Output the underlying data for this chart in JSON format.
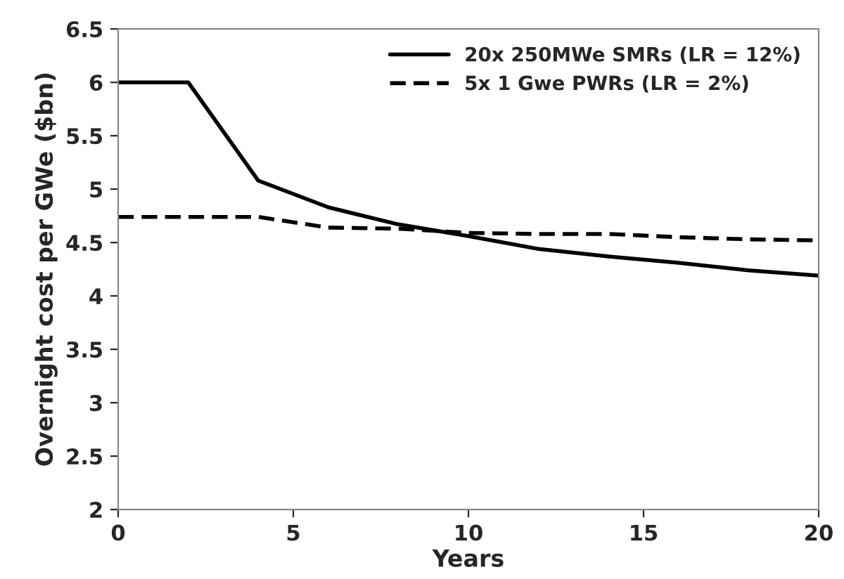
{
  "chart_data": {
    "type": "line",
    "xlabel": "Years",
    "ylabel": "Overnight cost per GWe ($bn)",
    "x": [
      0,
      2,
      4,
      6,
      8,
      10,
      12,
      14,
      16,
      18,
      20
    ],
    "series": [
      {
        "name": "20x 250MWe SMRs (LR = 12%)",
        "color": "#000000",
        "line_style": "solid",
        "values": [
          6,
          6,
          5.08,
          4.83,
          4.67,
          4.56,
          4.44,
          4.37,
          4.31,
          4.24,
          4.19
        ]
      },
      {
        "name": "5x 1 Gwe PWRs (LR = 2%)",
        "color": "#000000",
        "line_style": "dashed",
        "values": [
          4.74,
          4.74,
          4.74,
          4.64,
          4.63,
          4.59,
          4.58,
          4.58,
          4.55,
          4.53,
          4.52
        ]
      }
    ],
    "xlim": [
      0,
      20
    ],
    "xticks": [
      0,
      5,
      10,
      15,
      20
    ],
    "ylim": [
      2,
      6.5
    ],
    "yticks": [
      2,
      2.5,
      3,
      3.5,
      4,
      4.5,
      5,
      5.5,
      6,
      6.5
    ],
    "grid": false,
    "legend": "top right",
    "marker": "none"
  }
}
